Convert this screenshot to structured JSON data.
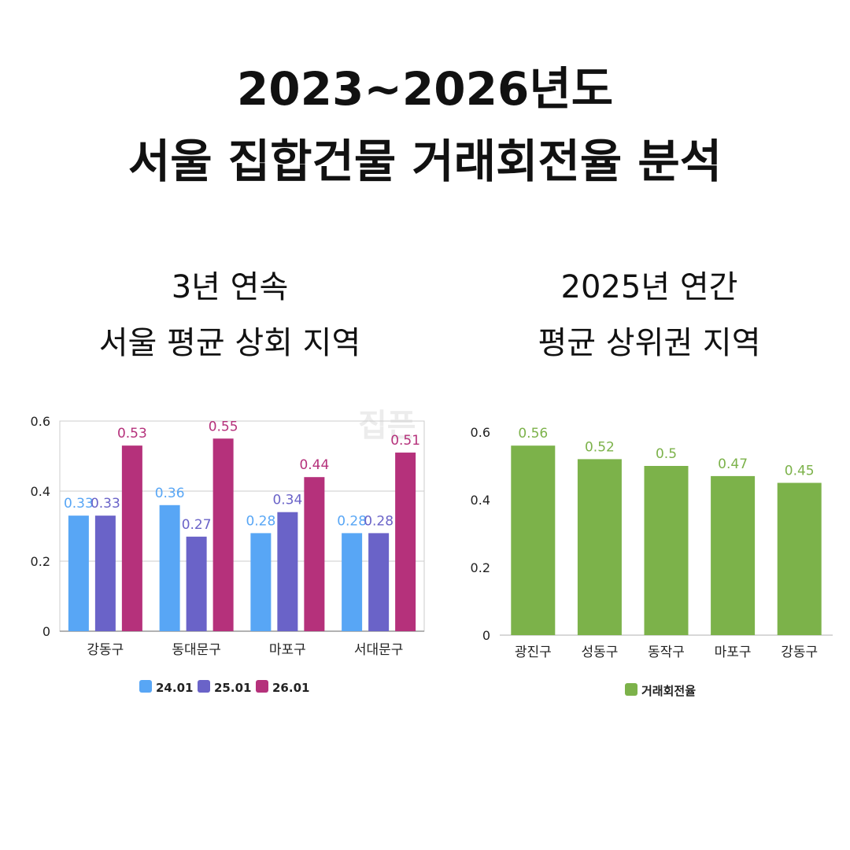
{
  "title": {
    "line1": "2023~2026년도",
    "line2": "서울 집합건물 거래회전율 분석"
  },
  "left_panel": {
    "subtitle_line1": "3년 연속",
    "subtitle_line2": "서울 평균 상회 지역"
  },
  "right_panel": {
    "subtitle_line1": "2025년 연간",
    "subtitle_line2": "평균 상위권 지역"
  },
  "watermark": "집픈",
  "colors": {
    "s24": "#58a6f5",
    "s25": "#6a63c8",
    "s26": "#b5317b",
    "green": "#7cb24a",
    "grid": "#cccccc",
    "axis": "#999999"
  },
  "chart_data": [
    {
      "type": "bar",
      "categories": [
        "강동구",
        "동대문구",
        "마포구",
        "서대문구"
      ],
      "series": [
        {
          "name": "24.01",
          "values": [
            0.33,
            0.36,
            0.28,
            0.28
          ]
        },
        {
          "name": "25.01",
          "values": [
            0.33,
            0.27,
            0.34,
            0.28
          ]
        },
        {
          "name": "26.01",
          "values": [
            0.53,
            0.55,
            0.44,
            0.51
          ]
        }
      ],
      "yticks": [
        "0",
        "0.2",
        "0.4",
        "0.6"
      ],
      "ylim": [
        0,
        0.6
      ],
      "grid": true,
      "legend": "bottom"
    },
    {
      "type": "bar",
      "categories": [
        "광진구",
        "성동구",
        "동작구",
        "마포구",
        "강동구"
      ],
      "series": [
        {
          "name": "거래회전율",
          "values": [
            0.56,
            0.52,
            0.5,
            0.47,
            0.45
          ]
        }
      ],
      "yticks": [
        "0",
        "0.2",
        "0.4",
        "0.6"
      ],
      "ylim": [
        0,
        0.6
      ],
      "grid": false,
      "legend": "bottom"
    }
  ]
}
